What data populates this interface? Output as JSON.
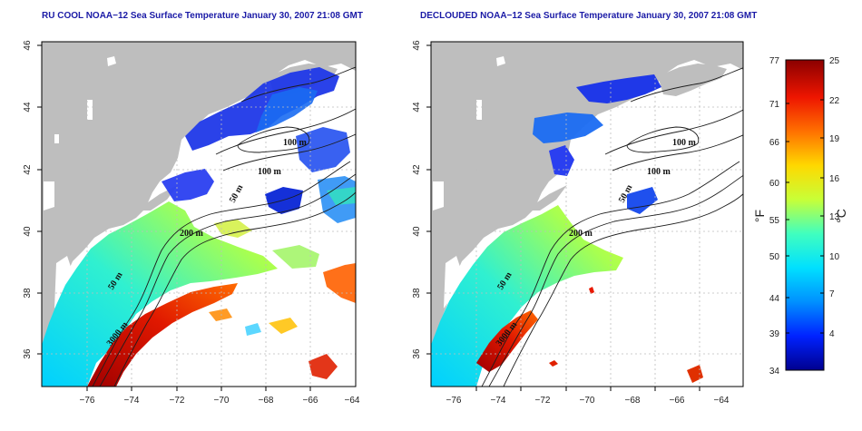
{
  "left_panel": {
    "title": "RU COOL NOAA−12 Sea Surface Temperature January 30, 2007 21:08 GMT"
  },
  "right_panel": {
    "title": "DECLOUDED NOAA−12 Sea Surface Temperature January 30, 2007 21:08 GMT"
  },
  "axes": {
    "x_ticks": [
      "−76",
      "−74",
      "−72",
      "−70",
      "−68",
      "−66",
      "−64"
    ],
    "y_ticks": [
      "36",
      "38",
      "40",
      "42",
      "44",
      "46"
    ]
  },
  "contour_labels": [
    "100 m",
    "100 m",
    "50 m",
    "200 m",
    "50 m",
    "3000 m"
  ],
  "colorbar": {
    "fahrenheit_ticks": [
      "77",
      "71",
      "66",
      "60",
      "55",
      "50",
      "44",
      "39",
      "34"
    ],
    "celsius_ticks": [
      "25",
      "22",
      "19",
      "16",
      "13",
      "10",
      "7",
      "4"
    ],
    "fahrenheit_unit": "°F",
    "celsius_unit": "°C"
  },
  "colors": {
    "land": "#bebebe",
    "cloud": "#ffffff",
    "title": "#1a1aa6",
    "grid": "#bdbdbd",
    "colormap": [
      "#00008f",
      "#0022ff",
      "#0090ff",
      "#00e0ff",
      "#40ffbf",
      "#c8ff37",
      "#ffd800",
      "#ff7000",
      "#ee1500",
      "#8b0000"
    ]
  }
}
